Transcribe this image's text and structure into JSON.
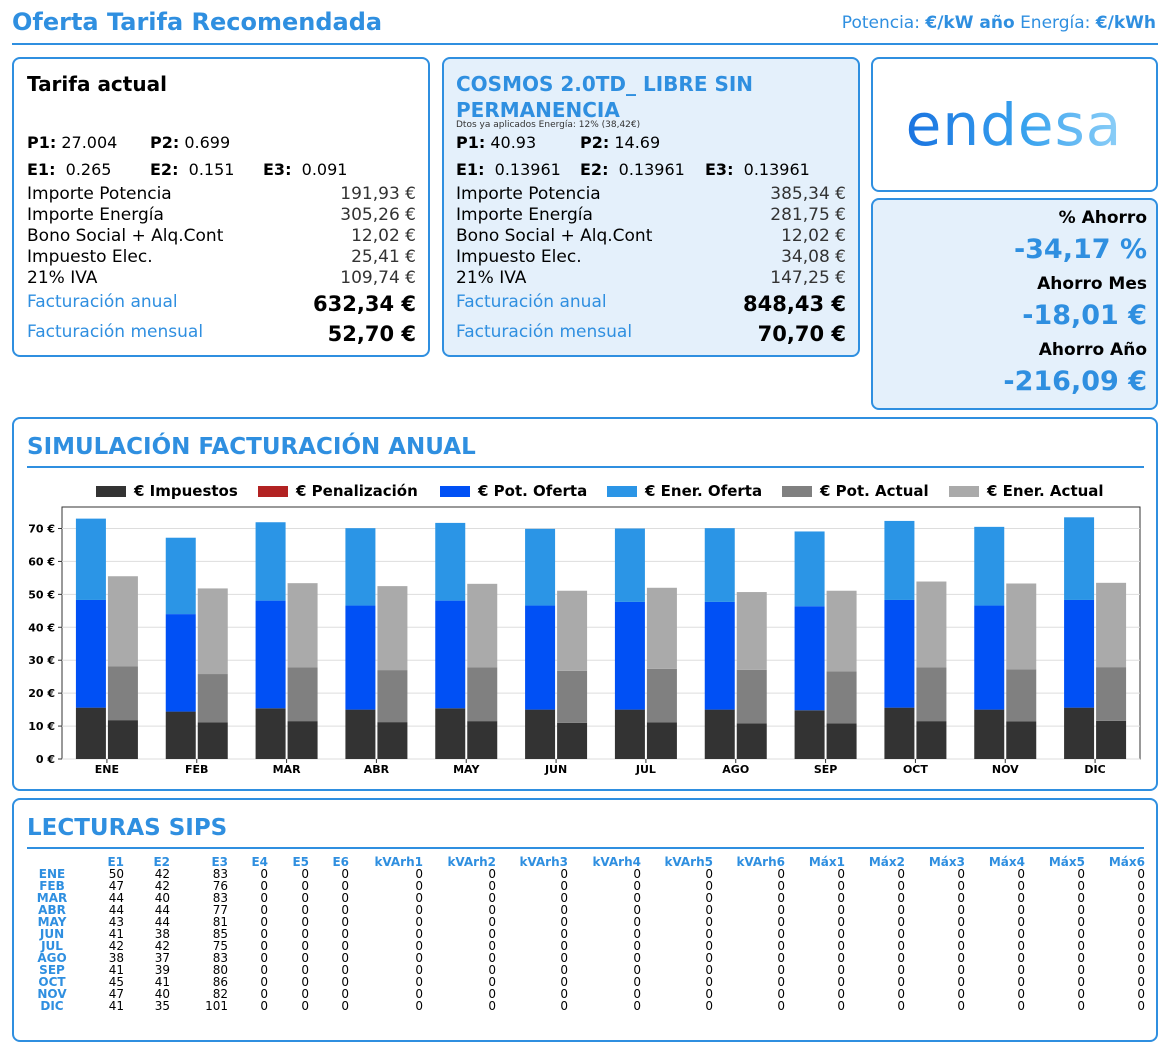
{
  "header": {
    "title": "Oferta Tarifa Recomendada",
    "units_pot_label": "Potencia:",
    "units_pot_value": "€/kW año",
    "units_ene_label": "Energía:",
    "units_ene_value": "€/kWh"
  },
  "current": {
    "title": "Tarifa actual",
    "p1_label": "P1:",
    "p1": "27.004",
    "p2_label": "P2:",
    "p2": "0.699",
    "e1_label": "E1:",
    "e1": "0.265",
    "e2_label": "E2:",
    "e2": "0.151",
    "e3_label": "E3:",
    "e3": "0.091",
    "rows": [
      {
        "label": "Importe Potencia",
        "value": "191,93 €"
      },
      {
        "label": "Importe Energía",
        "value": "305,26 €"
      },
      {
        "label": "Bono Social + Alq.Cont",
        "value": "12,02 €"
      },
      {
        "label": "Impuesto Elec.",
        "value": "25,41 €"
      },
      {
        "label": "21% IVA",
        "value": "109,74 €"
      }
    ],
    "annual_label": "Facturación anual",
    "annual": "632,34 €",
    "monthly_label": "Facturación mensual",
    "monthly": "52,70 €"
  },
  "offer": {
    "title_line1": "COSMOS 2.0TD_ LIBRE SIN",
    "title_line2": "PERMANENCIA",
    "discount_note": "Dtos ya aplicados Energía: 12% (38,42€)",
    "p1_label": "P1:",
    "p1": "40.93",
    "p2_label": "P2:",
    "p2": "14.69",
    "e1_label": "E1:",
    "e1": "0.13961",
    "e2_label": "E2:",
    "e2": "0.13961",
    "e3_label": "E3:",
    "e3": "0.13961",
    "rows": [
      {
        "label": "Importe Potencia",
        "value": "385,34 €"
      },
      {
        "label": "Importe Energía",
        "value": "281,75 €"
      },
      {
        "label": "Bono Social + Alq.Cont",
        "value": "12,02 €"
      },
      {
        "label": "Impuesto Elec.",
        "value": "34,08 €"
      },
      {
        "label": "21% IVA",
        "value": "147,25 €"
      }
    ],
    "annual_label": "Facturación anual",
    "annual": "848,43 €",
    "monthly_label": "Facturación mensual",
    "monthly": "70,70 €"
  },
  "brand": {
    "logo_text": "endesa"
  },
  "savings": {
    "pct_label": "% Ahorro",
    "pct": "-34,17 %",
    "month_label": "Ahorro Mes",
    "month": "-18,01 €",
    "year_label": "Ahorro Año",
    "year": "-216,09 €"
  },
  "colors": {
    "accent": "#2f8fe0",
    "impuestos": "#333333",
    "penalizacion": "#b22222",
    "pot_oferta": "#0050f5",
    "ener_oferta": "#2b95e6",
    "pot_actual": "#808080",
    "ener_actual": "#aaaaaa"
  },
  "simulation": {
    "title": "SIMULACIÓN FACTURACIÓN ANUAL"
  },
  "chart_data": {
    "type": "bar",
    "stacked": true,
    "grouped": true,
    "categories": [
      "ENE",
      "FEB",
      "MAR",
      "ABR",
      "MAY",
      "JUN",
      "JUL",
      "AGO",
      "SEP",
      "OCT",
      "NOV",
      "DIC"
    ],
    "series": [
      {
        "name": "€ Impuestos",
        "group": "oferta",
        "values": [
          15.6,
          14.4,
          15.4,
          15.0,
          15.4,
          15.0,
          15.0,
          15.0,
          14.8,
          15.6,
          15.0,
          15.6
        ]
      },
      {
        "name": "€ Penalización",
        "group": "oferta",
        "values": [
          0,
          0,
          0,
          0,
          0,
          0,
          0,
          0,
          0,
          0,
          0,
          0
        ]
      },
      {
        "name": "€ Pot. Oferta",
        "group": "oferta",
        "values": [
          32.7,
          29.6,
          32.7,
          31.6,
          32.7,
          31.6,
          32.7,
          32.7,
          31.6,
          32.7,
          31.6,
          32.7
        ]
      },
      {
        "name": "€ Ener. Oferta",
        "group": "oferta",
        "values": [
          24.7,
          23.2,
          23.8,
          23.5,
          23.6,
          23.3,
          22.3,
          22.4,
          22.7,
          24.0,
          23.9,
          25.1
        ]
      },
      {
        "name": "€ Impuestos",
        "group": "actual",
        "values": [
          11.8,
          11.1,
          11.5,
          11.2,
          11.5,
          11.0,
          11.1,
          10.8,
          10.8,
          11.5,
          11.4,
          11.6
        ]
      },
      {
        "name": "€ Penalización",
        "group": "actual",
        "values": [
          0,
          0,
          0,
          0,
          0,
          0,
          0,
          0,
          0,
          0,
          0,
          0
        ]
      },
      {
        "name": "€ Pot. Actual",
        "group": "actual",
        "values": [
          16.3,
          14.7,
          16.3,
          15.8,
          16.3,
          15.8,
          16.3,
          16.3,
          15.8,
          16.3,
          15.8,
          16.3
        ]
      },
      {
        "name": "€ Ener. Actual",
        "group": "actual",
        "values": [
          27.4,
          26.0,
          25.6,
          25.5,
          25.4,
          24.3,
          24.6,
          23.6,
          24.5,
          26.1,
          26.1,
          25.6
        ]
      }
    ],
    "legend": [
      "€ Impuestos",
      "€ Penalización",
      "€ Pot. Oferta",
      "€ Ener. Oferta",
      "€ Pot. Actual",
      "€ Ener. Actual"
    ],
    "legend_position": "top",
    "yticks": [
      "0 €",
      "10 €",
      "20 €",
      "30 €",
      "40 €",
      "50 €",
      "60 €",
      "70 €"
    ],
    "ylim": [
      0,
      70
    ],
    "grid": true
  },
  "sips": {
    "title": "LECTURAS SIPS",
    "columns": [
      "E1",
      "E2",
      "E3",
      "E4",
      "E5",
      "E6",
      "kVArh1",
      "kVArh2",
      "kVArh3",
      "kVArh4",
      "kVArh5",
      "kVArh6",
      "Máx1",
      "Máx2",
      "Máx3",
      "Máx4",
      "Máx5",
      "Máx6"
    ],
    "rows": [
      {
        "month": "ENE",
        "values": [
          "50",
          "42",
          "83",
          "0",
          "0",
          "0",
          "0",
          "0",
          "0",
          "0",
          "0",
          "0",
          "0",
          "0",
          "0",
          "0",
          "0",
          "0"
        ]
      },
      {
        "month": "FEB",
        "values": [
          "47",
          "42",
          "76",
          "0",
          "0",
          "0",
          "0",
          "0",
          "0",
          "0",
          "0",
          "0",
          "0",
          "0",
          "0",
          "0",
          "0",
          "0"
        ]
      },
      {
        "month": "MAR",
        "values": [
          "44",
          "40",
          "83",
          "0",
          "0",
          "0",
          "0",
          "0",
          "0",
          "0",
          "0",
          "0",
          "0",
          "0",
          "0",
          "0",
          "0",
          "0"
        ]
      },
      {
        "month": "ABR",
        "values": [
          "44",
          "44",
          "77",
          "0",
          "0",
          "0",
          "0",
          "0",
          "0",
          "0",
          "0",
          "0",
          "0",
          "0",
          "0",
          "0",
          "0",
          "0"
        ]
      },
      {
        "month": "MAY",
        "values": [
          "43",
          "44",
          "81",
          "0",
          "0",
          "0",
          "0",
          "0",
          "0",
          "0",
          "0",
          "0",
          "0",
          "0",
          "0",
          "0",
          "0",
          "0"
        ]
      },
      {
        "month": "JUN",
        "values": [
          "41",
          "38",
          "85",
          "0",
          "0",
          "0",
          "0",
          "0",
          "0",
          "0",
          "0",
          "0",
          "0",
          "0",
          "0",
          "0",
          "0",
          "0"
        ]
      },
      {
        "month": "JUL",
        "values": [
          "42",
          "42",
          "75",
          "0",
          "0",
          "0",
          "0",
          "0",
          "0",
          "0",
          "0",
          "0",
          "0",
          "0",
          "0",
          "0",
          "0",
          "0"
        ]
      },
      {
        "month": "AGO",
        "values": [
          "38",
          "37",
          "83",
          "0",
          "0",
          "0",
          "0",
          "0",
          "0",
          "0",
          "0",
          "0",
          "0",
          "0",
          "0",
          "0",
          "0",
          "0"
        ]
      },
      {
        "month": "SEP",
        "values": [
          "41",
          "39",
          "80",
          "0",
          "0",
          "0",
          "0",
          "0",
          "0",
          "0",
          "0",
          "0",
          "0",
          "0",
          "0",
          "0",
          "0",
          "0"
        ]
      },
      {
        "month": "OCT",
        "values": [
          "45",
          "41",
          "86",
          "0",
          "0",
          "0",
          "0",
          "0",
          "0",
          "0",
          "0",
          "0",
          "0",
          "0",
          "0",
          "0",
          "0",
          "0"
        ]
      },
      {
        "month": "NOV",
        "values": [
          "47",
          "40",
          "82",
          "0",
          "0",
          "0",
          "0",
          "0",
          "0",
          "0",
          "0",
          "0",
          "0",
          "0",
          "0",
          "0",
          "0",
          "0"
        ]
      },
      {
        "month": "DIC",
        "values": [
          "41",
          "35",
          "101",
          "0",
          "0",
          "0",
          "0",
          "0",
          "0",
          "0",
          "0",
          "0",
          "0",
          "0",
          "0",
          "0",
          "0",
          "0"
        ]
      }
    ]
  }
}
